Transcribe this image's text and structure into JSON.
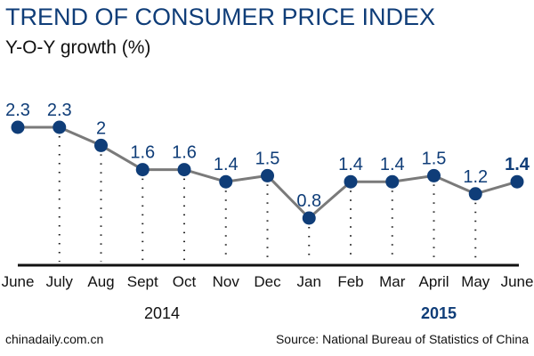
{
  "chart_data": {
    "type": "line",
    "title": "TREND OF CONSUMER PRICE INDEX",
    "ylabel": "Y-O-Y growth (%)",
    "categories": [
      "June",
      "July",
      "Aug",
      "Sept",
      "Oct",
      "Nov",
      "Dec",
      "Jan",
      "Feb",
      "Mar",
      "April",
      "May",
      "June"
    ],
    "values": [
      2.3,
      2.3,
      2,
      1.6,
      1.6,
      1.4,
      1.5,
      0.8,
      1.4,
      1.4,
      1.5,
      1.2,
      1.4
    ],
    "value_labels": [
      "2.3",
      "2.3",
      "2",
      "1.6",
      "1.6",
      "1.4",
      "1.5",
      "0.8",
      "1.4",
      "1.4",
      "1.5",
      "1.2",
      "1.4"
    ],
    "year_groups": [
      {
        "label": "2014",
        "bold": false
      },
      {
        "label": "2015",
        "bold": true
      }
    ],
    "grid": false,
    "colors": {
      "marker": "#0f3d78",
      "line": "#7a7a7a",
      "label": "#0f3d78",
      "axis": "#111111"
    }
  },
  "footer": {
    "left": "chinadaily.com.cn",
    "right": "Source: National Bureau of Statistics of China"
  }
}
